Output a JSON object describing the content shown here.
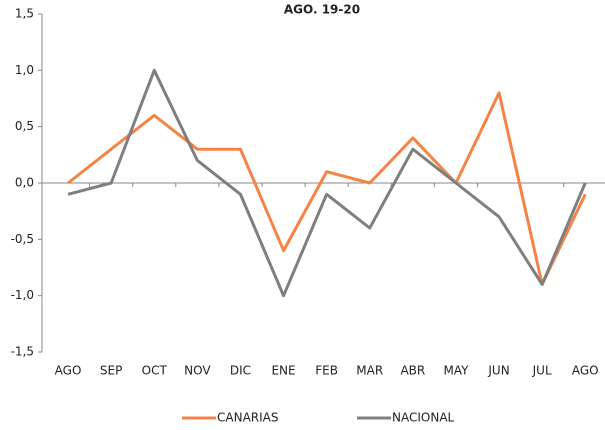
{
  "chart_data": {
    "type": "line",
    "title": "AGO. 19-20",
    "categories": [
      "AGO",
      "SEP",
      "OCT",
      "NOV",
      "DIC",
      "ENE",
      "FEB",
      "MAR",
      "ABR",
      "MAY",
      "JUN",
      "JUL",
      "AGO"
    ],
    "series": [
      {
        "name": "CANARIAS",
        "color": "#f58345",
        "values": [
          0,
          0.3,
          0.6,
          0.3,
          0.3,
          -0.6,
          0.1,
          0,
          0.4,
          0,
          0.8,
          -0.9,
          -0.1
        ]
      },
      {
        "name": "NACIONAL",
        "color": "#7f7f7f",
        "values": [
          -0.1,
          0,
          1.0,
          0.2,
          -0.1,
          -1.0,
          -0.1,
          -0.4,
          0.3,
          0,
          -0.3,
          -0.9,
          0
        ]
      }
    ],
    "ylim": [
      -1.5,
      1.5
    ],
    "yticks": [
      {
        "value": -1.5,
        "label": "-1,5"
      },
      {
        "value": -1.0,
        "label": "-1,0"
      },
      {
        "value": -0.5,
        "label": "-0,5"
      },
      {
        "value": 0,
        "label": "0,0"
      },
      {
        "value": 0.5,
        "label": "0,5"
      },
      {
        "value": 1.0,
        "label": "1,0"
      },
      {
        "value": 1.5,
        "label": "1,5"
      }
    ],
    "grid": false,
    "legend": "bottom"
  }
}
